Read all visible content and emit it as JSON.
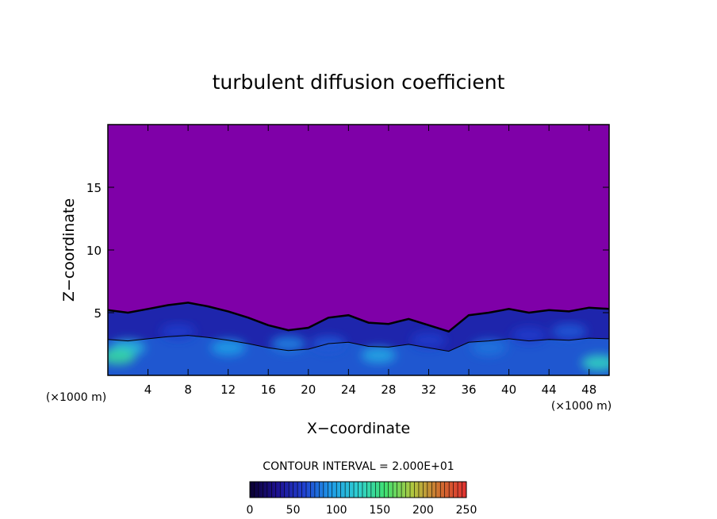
{
  "chart_data": {
    "type": "heatmap",
    "title": "turbulent diffusion coefficient",
    "xlabel": "X−coordinate",
    "ylabel": "Z−coordinate",
    "x_unit": "(×1000 m)",
    "y_unit": "(×1000 m)",
    "xlim": [
      0,
      50
    ],
    "ylim": [
      0,
      20
    ],
    "x_ticks": [
      4,
      8,
      12,
      16,
      20,
      24,
      28,
      32,
      36,
      40,
      44,
      48
    ],
    "y_ticks": [
      5,
      10,
      15
    ],
    "contour_interval_label": "CONTOUR INTERVAL = 2.000E+01",
    "contour_interval": 20,
    "colorbar": {
      "min": 0,
      "max": 250,
      "ticks": [
        0,
        50,
        100,
        150,
        200,
        250
      ],
      "colors": [
        "#0a0030",
        "#1d1090",
        "#2040d0",
        "#1e9be8",
        "#2fd0d0",
        "#40e070",
        "#b0c840",
        "#d07030",
        "#e03030"
      ]
    },
    "background_value": 0,
    "background_color": "#7f00a8",
    "boundary_layer_top_profile": [
      [
        0,
        5.2
      ],
      [
        2,
        5.0
      ],
      [
        4,
        5.3
      ],
      [
        6,
        5.6
      ],
      [
        8,
        5.8
      ],
      [
        10,
        5.5
      ],
      [
        12,
        5.1
      ],
      [
        14,
        4.6
      ],
      [
        16,
        4.0
      ],
      [
        18,
        3.6
      ],
      [
        20,
        3.8
      ],
      [
        22,
        4.6
      ],
      [
        24,
        4.8
      ],
      [
        26,
        4.2
      ],
      [
        28,
        4.1
      ],
      [
        30,
        4.5
      ],
      [
        32,
        4.0
      ],
      [
        34,
        3.5
      ],
      [
        36,
        4.8
      ],
      [
        38,
        5.0
      ],
      [
        40,
        5.3
      ],
      [
        42,
        5.0
      ],
      [
        44,
        5.2
      ],
      [
        46,
        5.1
      ],
      [
        48,
        5.4
      ],
      [
        50,
        5.3
      ]
    ],
    "eddy_regions": [
      {
        "x": 2,
        "z": 2.2,
        "value": 110
      },
      {
        "x": 1,
        "z": 1.5,
        "value": 140
      },
      {
        "x": 7,
        "z": 3.5,
        "value": 60
      },
      {
        "x": 12,
        "z": 2.2,
        "value": 95
      },
      {
        "x": 18,
        "z": 2.5,
        "value": 85
      },
      {
        "x": 22,
        "z": 2.5,
        "value": 70
      },
      {
        "x": 27,
        "z": 1.6,
        "value": 100
      },
      {
        "x": 32,
        "z": 2.8,
        "value": 60
      },
      {
        "x": 38,
        "z": 2.2,
        "value": 80
      },
      {
        "x": 42,
        "z": 3.2,
        "value": 60
      },
      {
        "x": 46,
        "z": 3.5,
        "value": 70
      },
      {
        "x": 49,
        "z": 1.0,
        "value": 130
      }
    ]
  }
}
